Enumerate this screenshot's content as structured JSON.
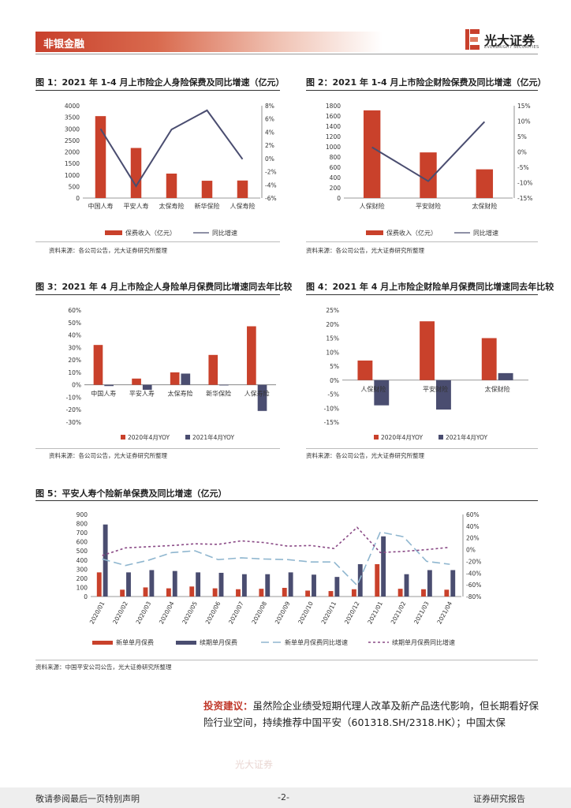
{
  "header": {
    "section": "非银金融",
    "logo_name": "光大证券",
    "logo_en": "EVERBRIGHT SECURITIES"
  },
  "source_notes": {
    "company": "资料来源：各公司公告，光大证券研究所整理",
    "pingan": "资料来源：中国平安公司公告，光大证券研究所整理"
  },
  "paragraph": {
    "keyword": "投资建议：",
    "text": "虽然险企业绩受短期代理人改革及新产品迭代影响，但长期看好保险行业空间，持续推荐中国平安（601318.SH/2318.HK）；中国太保"
  },
  "stamp_text": "光大证券",
  "footer": {
    "left": "敬请参阅最后一页特别声明",
    "page": "-2-",
    "right": "证券研究报告"
  },
  "colors": {
    "bar_red": "#c9412b",
    "bar_navy": "#4a4d70",
    "line": "#4a4d70",
    "accent": "#c8402c"
  },
  "chart_data": [
    {
      "id": "fig1",
      "type": "bar+line",
      "title": "图 1：2021 年 1-4 月上市险企人身险保费及同比增速（亿元）",
      "categories": [
        "中国人寿",
        "平安人寿",
        "太保寿险",
        "新华保险",
        "人保寿险"
      ],
      "bar_series": {
        "name": "保费收入（亿元）",
        "values": [
          3550,
          2170,
          1060,
          750,
          760
        ]
      },
      "line_series": {
        "name": "同比增速",
        "values": [
          4.5,
          -4.2,
          4.4,
          7.3,
          -0.1
        ]
      },
      "y_left": {
        "min": 0,
        "max": 4000,
        "step": 500,
        "ticks": [
          "0",
          "500",
          "1000",
          "1500",
          "2000",
          "2500",
          "3000",
          "3500",
          "4000"
        ]
      },
      "y_right": {
        "min": -6,
        "max": 8,
        "step": 2,
        "ticks": [
          "-6%",
          "-4%",
          "-2%",
          "0%",
          "2%",
          "4%",
          "6%",
          "8%"
        ]
      }
    },
    {
      "id": "fig2",
      "type": "bar+line",
      "title": "图 2：2021 年 1-4 月上市险企财险保费及同比增速（亿元）",
      "categories": [
        "人保财险",
        "平安财险",
        "太保财险"
      ],
      "bar_series": {
        "name": "保费收入（亿元）",
        "values": [
          1710,
          890,
          560
        ]
      },
      "line_series": {
        "name": "同比增速",
        "values": [
          1.5,
          -9.5,
          9.8
        ]
      },
      "y_left": {
        "min": 0,
        "max": 1800,
        "step": 200,
        "ticks": [
          "0",
          "200",
          "400",
          "600",
          "800",
          "1000",
          "1200",
          "1400",
          "1600",
          "1800"
        ]
      },
      "y_right": {
        "min": -15,
        "max": 15,
        "step": 5,
        "ticks": [
          "-15%",
          "-10%",
          "-5%",
          "0%",
          "5%",
          "10%",
          "15%"
        ]
      }
    },
    {
      "id": "fig3",
      "type": "grouped_bar",
      "title": "图 3：2021 年 4 月上市险企人身险单月保费同比增速同去年比较",
      "categories": [
        "中国人寿",
        "平安人寿",
        "太保寿险",
        "新华保险",
        "人保寿险"
      ],
      "series": [
        {
          "name": "2020年4月YOY",
          "values": [
            32,
            5,
            10,
            24,
            47
          ]
        },
        {
          "name": "2021年4月YOY",
          "values": [
            -1,
            -4,
            9,
            -0.5,
            -21
          ]
        }
      ],
      "y": {
        "min": -30,
        "max": 60,
        "step": 10,
        "ticks": [
          "-30%",
          "-20%",
          "-10%",
          "0%",
          "10%",
          "20%",
          "30%",
          "40%",
          "50%",
          "60%"
        ]
      }
    },
    {
      "id": "fig4",
      "type": "grouped_bar",
      "title": "图 4：2021 年 4 月上市险企财险单月保费同比增速同去年比较",
      "categories": [
        "人保财险",
        "平安财险",
        "太保财险"
      ],
      "series": [
        {
          "name": "2020年4月YOY",
          "values": [
            7,
            21,
            15
          ]
        },
        {
          "name": "2021年4月YOY",
          "values": [
            -9,
            -10.5,
            2.5
          ]
        }
      ],
      "y": {
        "min": -15,
        "max": 25,
        "step": 5,
        "ticks": [
          "-15%",
          "-10%",
          "-5%",
          "0%",
          "5%",
          "10%",
          "15%",
          "20%",
          "25%"
        ]
      }
    },
    {
      "id": "fig5",
      "type": "grouped_bar+line",
      "title": "图 5：平安人寿个险新单保费及同比增速（亿元）",
      "categories": [
        "2020/01",
        "2020/02",
        "2020/03",
        "2020/04",
        "2020/05",
        "2020/06",
        "2020/07",
        "2020/08",
        "2020/09",
        "2020/10",
        "2020/11",
        "2020/12",
        "2021/01",
        "2021/02",
        "2021/03",
        "2021/04"
      ],
      "bar_series": [
        {
          "name": "新单单月保费",
          "values": [
            265,
            75,
            100,
            90,
            110,
            90,
            80,
            85,
            95,
            65,
            60,
            80,
            355,
            85,
            80,
            75
          ]
        },
        {
          "name": "续期单月保费",
          "values": [
            790,
            265,
            290,
            280,
            265,
            260,
            245,
            245,
            265,
            240,
            215,
            355,
            660,
            245,
            290,
            290
          ]
        }
      ],
      "line_series": [
        {
          "name": "新单单月保费同比增速",
          "dash": "long",
          "values": [
            -16,
            -27,
            -18,
            -5,
            -2,
            -17,
            -14,
            -16,
            -17,
            -21,
            -21,
            -61,
            30,
            22,
            -20,
            -25
          ]
        },
        {
          "name": "续期单月保费同比增速",
          "dash": "short",
          "values": [
            -10,
            3,
            5,
            7,
            10,
            9,
            15,
            12,
            6,
            7,
            2,
            38,
            -5,
            -3,
            0,
            4
          ]
        }
      ],
      "y_left": {
        "min": 0,
        "max": 900,
        "step": 100,
        "ticks": [
          "0",
          "100",
          "200",
          "300",
          "400",
          "500",
          "600",
          "700",
          "800",
          "900"
        ]
      },
      "y_right": {
        "min": -80,
        "max": 60,
        "step": 20,
        "ticks": [
          "-80%",
          "-60%",
          "-40%",
          "-20%",
          "0%",
          "20%",
          "40%",
          "60%"
        ]
      }
    }
  ]
}
